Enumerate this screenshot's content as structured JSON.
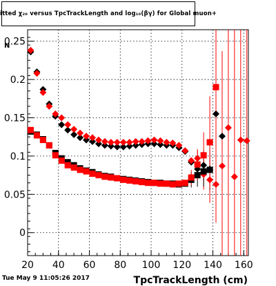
{
  "page": {
    "title": "itted  χ₂₀  versus TpcTrackLength and log₁₀(βγ) for Global muon+",
    "footer_date": "Tue May  9 11:05:26 2017",
    "ylabel_partial": "N"
  },
  "colors": {
    "series_black": "#000000",
    "series_red": "#ff0000",
    "grid": "#000000"
  },
  "chart_data": {
    "type": "scatter",
    "title": "itted  χ₂₀  versus TpcTrackLength and log₁₀(βγ) for Global muon+",
    "xlabel": "TpcTrackLength (cm)",
    "ylabel": "N",
    "xlim": [
      20,
      163
    ],
    "ylim": [
      -0.03,
      0.265
    ],
    "xticks": [
      20,
      40,
      60,
      80,
      100,
      120,
      140,
      160
    ],
    "yticks": [
      0,
      0.05,
      0.1,
      0.15,
      0.2,
      0.25
    ],
    "grid": true,
    "series": [
      {
        "marker": "diamond",
        "color": "#000000",
        "points": [
          [
            22,
            0.236
          ],
          [
            26,
            0.21
          ],
          [
            30,
            0.187
          ],
          [
            34,
            0.168
          ],
          [
            38,
            0.152
          ],
          [
            42,
            0.141
          ],
          [
            46,
            0.134
          ],
          [
            50,
            0.128
          ],
          [
            54,
            0.124
          ],
          [
            58,
            0.121
          ],
          [
            62,
            0.119
          ],
          [
            66,
            0.116
          ],
          [
            70,
            0.114
          ],
          [
            74,
            0.113
          ],
          [
            78,
            0.112
          ],
          [
            82,
            0.112
          ],
          [
            86,
            0.113
          ],
          [
            90,
            0.114
          ],
          [
            94,
            0.115
          ],
          [
            98,
            0.116
          ],
          [
            102,
            0.116
          ],
          [
            106,
            0.115
          ],
          [
            110,
            0.114
          ],
          [
            114,
            0.114
          ],
          [
            118,
            0.111
          ],
          [
            122,
            0.106
          ],
          [
            126,
            0.092
          ],
          [
            130,
            0.083
          ],
          [
            134,
            0.088
          ],
          [
            138,
            0.083
          ],
          [
            142,
            0.155
          ],
          [
            146,
            0.126
          ]
        ],
        "errors": [
          0,
          0,
          0,
          0,
          0,
          0,
          0,
          0,
          0,
          0,
          0,
          0,
          0,
          0,
          0,
          0,
          0,
          0,
          0,
          0,
          0,
          0,
          0,
          0,
          0,
          0,
          0,
          0.01,
          0.02,
          0.03,
          0,
          0
        ]
      },
      {
        "marker": "diamond",
        "color": "#ff0000",
        "points": [
          [
            22,
            0.238
          ],
          [
            26,
            0.208
          ],
          [
            30,
            0.183
          ],
          [
            34,
            0.165
          ],
          [
            38,
            0.155
          ],
          [
            42,
            0.15
          ],
          [
            46,
            0.141
          ],
          [
            50,
            0.135
          ],
          [
            54,
            0.13
          ],
          [
            58,
            0.126
          ],
          [
            62,
            0.124
          ],
          [
            66,
            0.121
          ],
          [
            70,
            0.119
          ],
          [
            74,
            0.118
          ],
          [
            78,
            0.118
          ],
          [
            82,
            0.118
          ],
          [
            86,
            0.118
          ],
          [
            90,
            0.119
          ],
          [
            94,
            0.119
          ],
          [
            98,
            0.12
          ],
          [
            102,
            0.121
          ],
          [
            106,
            0.12
          ],
          [
            110,
            0.118
          ],
          [
            114,
            0.117
          ],
          [
            118,
            0.114
          ],
          [
            122,
            0.107
          ],
          [
            126,
            0.094
          ],
          [
            130,
            0.097
          ],
          [
            134,
            0.076
          ],
          [
            138,
            0.069
          ],
          [
            142,
            0.063
          ],
          [
            146,
            0.087
          ],
          [
            150,
            0.137
          ],
          [
            154,
            0.073
          ],
          [
            158,
            0.121
          ],
          [
            162,
            0.12
          ]
        ],
        "errors": [
          0,
          0,
          0,
          0,
          0,
          0,
          0,
          0,
          0,
          0,
          0,
          0,
          0,
          0,
          0,
          0,
          0,
          0,
          0,
          0,
          0,
          0,
          0,
          0,
          0,
          0,
          0,
          0.01,
          0.02,
          0.03,
          0.05,
          0.15,
          0.2,
          0.2,
          0.2,
          0.2
        ]
      },
      {
        "marker": "square",
        "color": "#000000",
        "points": [
          [
            22,
            0.132
          ],
          [
            26,
            0.128
          ],
          [
            30,
            0.122
          ],
          [
            34,
            0.114
          ],
          [
            38,
            0.104
          ],
          [
            42,
            0.097
          ],
          [
            46,
            0.092
          ],
          [
            50,
            0.088
          ],
          [
            54,
            0.084
          ],
          [
            58,
            0.081
          ],
          [
            62,
            0.079
          ],
          [
            66,
            0.076
          ],
          [
            70,
            0.074
          ],
          [
            74,
            0.073
          ],
          [
            78,
            0.071
          ],
          [
            82,
            0.07
          ],
          [
            86,
            0.069
          ],
          [
            90,
            0.068
          ],
          [
            94,
            0.067
          ],
          [
            98,
            0.066
          ],
          [
            102,
            0.065
          ],
          [
            106,
            0.065
          ],
          [
            110,
            0.064
          ],
          [
            114,
            0.064
          ],
          [
            118,
            0.063
          ],
          [
            122,
            0.064
          ],
          [
            126,
            0.069
          ],
          [
            130,
            0.075
          ],
          [
            134,
            0.08
          ],
          [
            138,
            0.082
          ]
        ],
        "errors": [
          0,
          0,
          0,
          0,
          0,
          0,
          0,
          0,
          0,
          0,
          0,
          0,
          0,
          0,
          0,
          0,
          0,
          0,
          0,
          0,
          0,
          0,
          0,
          0,
          0,
          0,
          0.01,
          0.015,
          0.02,
          0.025
        ]
      },
      {
        "marker": "square",
        "color": "#ff0000",
        "points": [
          [
            22,
            0.134
          ],
          [
            26,
            0.127
          ],
          [
            30,
            0.121
          ],
          [
            34,
            0.114
          ],
          [
            38,
            0.101
          ],
          [
            42,
            0.094
          ],
          [
            46,
            0.088
          ],
          [
            50,
            0.085
          ],
          [
            54,
            0.082
          ],
          [
            58,
            0.08
          ],
          [
            62,
            0.077
          ],
          [
            66,
            0.075
          ],
          [
            70,
            0.073
          ],
          [
            74,
            0.072
          ],
          [
            78,
            0.071
          ],
          [
            82,
            0.069
          ],
          [
            86,
            0.068
          ],
          [
            90,
            0.067
          ],
          [
            94,
            0.066
          ],
          [
            98,
            0.065
          ],
          [
            102,
            0.065
          ],
          [
            106,
            0.064
          ],
          [
            110,
            0.064
          ],
          [
            114,
            0.063
          ],
          [
            118,
            0.064
          ],
          [
            122,
            0.065
          ],
          [
            126,
            0.072
          ],
          [
            130,
            0.089
          ],
          [
            134,
            0.101
          ],
          [
            138,
            0.118
          ],
          [
            142,
            0.19
          ]
        ],
        "errors": [
          0,
          0,
          0,
          0,
          0,
          0,
          0,
          0,
          0,
          0,
          0,
          0,
          0,
          0,
          0,
          0,
          0,
          0,
          0,
          0,
          0,
          0,
          0,
          0,
          0,
          0,
          0.01,
          0.02,
          0.03,
          0.06,
          0.08
        ]
      }
    ]
  }
}
